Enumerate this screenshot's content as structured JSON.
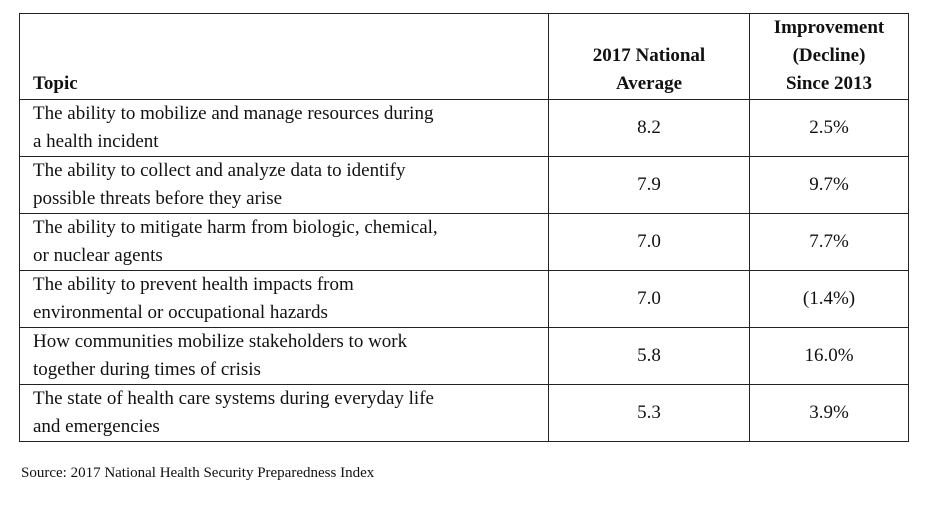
{
  "table": {
    "headers": {
      "topic": "Topic",
      "average": [
        "2017 National",
        "Average"
      ],
      "improvement": [
        "Improvement",
        "(Decline)",
        "Since 2013"
      ]
    },
    "rows": [
      {
        "topic": [
          "The ability to mobilize and manage resources during",
          "a health incident"
        ],
        "average": "8.2",
        "improvement": "2.5%"
      },
      {
        "topic": [
          "The ability to collect and analyze data to identify",
          "possible threats before they arise"
        ],
        "average": "7.9",
        "improvement": "9.7%"
      },
      {
        "topic": [
          "The ability to mitigate harm from biologic, chemical,",
          "or nuclear agents"
        ],
        "average": "7.0",
        "improvement": "7.7%"
      },
      {
        "topic": [
          "The ability to prevent health impacts from",
          "environmental or occupational hazards"
        ],
        "average": "7.0",
        "improvement": "(1.4%)"
      },
      {
        "topic": [
          "How communities mobilize stakeholders to work",
          "together during times of crisis"
        ],
        "average": "5.8",
        "improvement": "16.0%"
      },
      {
        "topic": [
          "The state of health care systems during everyday life",
          "and emergencies"
        ],
        "average": "5.3",
        "improvement": "3.9%"
      }
    ]
  },
  "source": "Source: 2017 National Health Security Preparedness Index"
}
